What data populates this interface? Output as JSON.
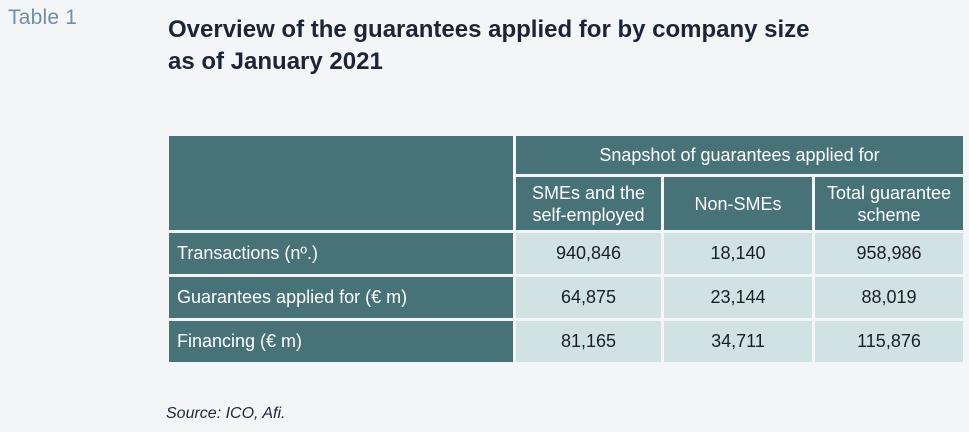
{
  "table_label": "Table 1",
  "title_lines": [
    "Overview of the guarantees applied for by company size",
    "as of January 2021"
  ],
  "table": {
    "group_header": "Snapshot of guarantees applied for",
    "columns": [
      [
        "SMEs and the",
        "self-employed"
      ],
      [
        "Non-SMEs"
      ],
      [
        "Total guarantee",
        "scheme"
      ]
    ],
    "rows": [
      {
        "label": "Transactions (nº.)",
        "values": [
          "940,846",
          "18,140",
          "958,986"
        ]
      },
      {
        "label": "Guarantees applied for (€ m)",
        "values": [
          "64,875",
          "23,144",
          "88,019"
        ]
      },
      {
        "label": "Financing (€ m)",
        "values": [
          "81,165",
          "34,711",
          "115,876"
        ]
      }
    ]
  },
  "source": "Source: ICO, Afi.",
  "colors": {
    "header_bg": "#477278",
    "cell_bg": "#d0e2e4",
    "page_bg": "#f3f5f7",
    "label_color": "#6f8fa6",
    "title_color": "#1b2537"
  }
}
